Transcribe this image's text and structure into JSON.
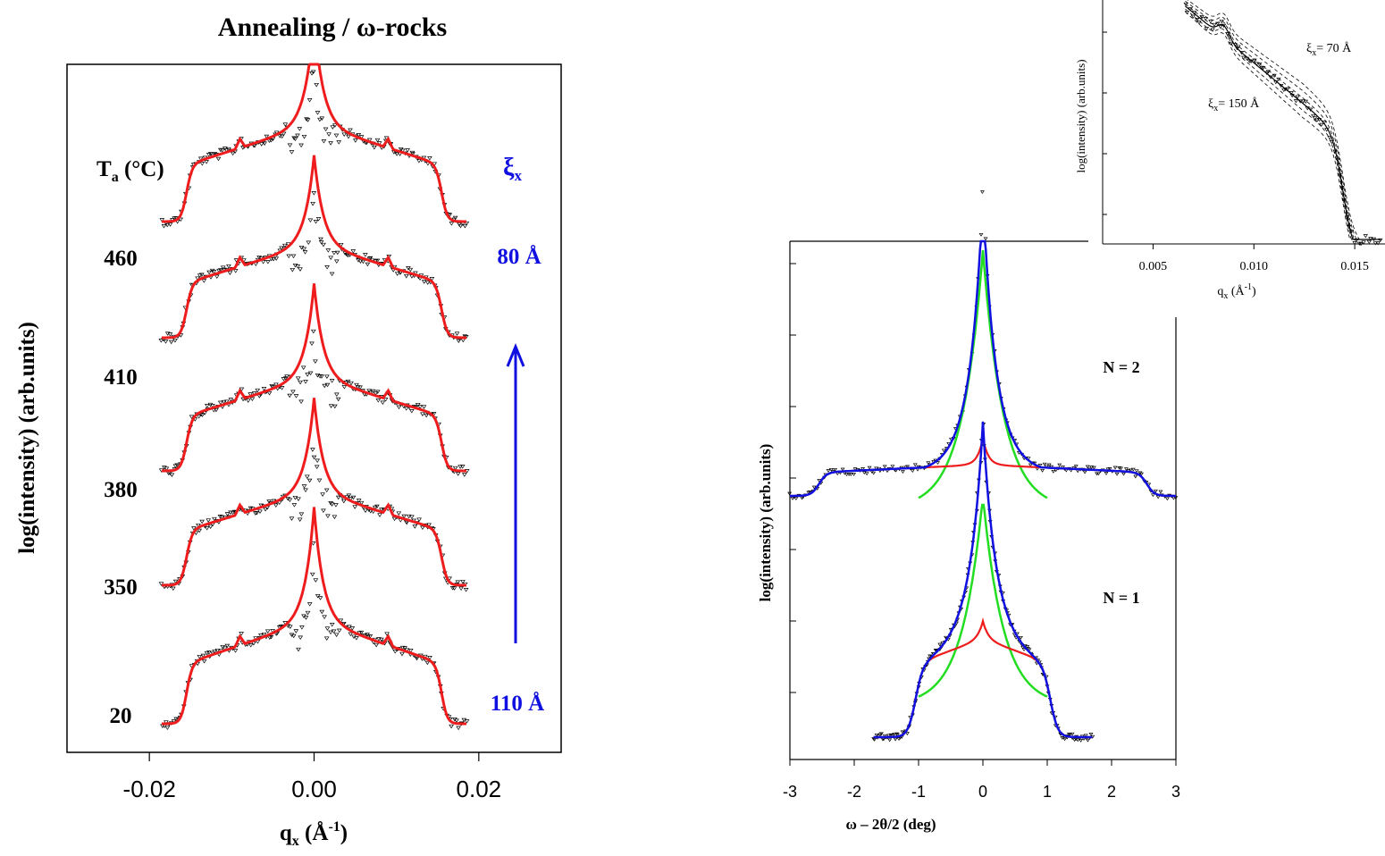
{
  "colors": {
    "fit": "#ee1c1c",
    "total": "#1010e0",
    "specular": "#22dd22",
    "data": "#000000",
    "annotation": "#1010e0"
  },
  "chart_data": [
    {
      "id": "left",
      "type": "line",
      "title": "Annealing / ω-rocks",
      "ylabel": "log(intensity)  (arb.units)",
      "xlabel_main": "q",
      "xlabel_sub": "x",
      "xlabel_unit_open": "  (Å",
      "xlabel_unit_sup": "-1",
      "xlabel_unit_close": ")",
      "xticks": [
        "-0.02",
        "0.00",
        "0.02"
      ],
      "xlim": [
        -0.03,
        0.03
      ],
      "legend_header_main": "T",
      "legend_header_sub": "a",
      "legend_header_unit": " (°C)",
      "xi_main": "ξ",
      "xi_sub": "x",
      "xi_top_value": "80 Å",
      "xi_bottom_value": "110 Å",
      "series": [
        {
          "name": "460"
        },
        {
          "name": "410"
        },
        {
          "name": "380"
        },
        {
          "name": "350"
        },
        {
          "name": "20"
        }
      ],
      "shape": {
        "plateau_edge_qx": 0.0155,
        "data_range_qx": [
          -0.0185,
          0.0185
        ],
        "peak_qx": 0.0
      }
    },
    {
      "id": "right",
      "type": "line",
      "ylabel": "log(intensity)  (arb.units)",
      "xlabel": "ω – 2θ/2  (deg)",
      "xticks": [
        "-3",
        "-2",
        "-1",
        "0",
        "1",
        "2",
        "3"
      ],
      "xlim": [
        -3,
        3
      ],
      "series_labels": [
        "N = 2",
        "N = 1"
      ],
      "series": [
        {
          "name": "N = 2",
          "plateau_edge_deg": 2.55,
          "data_range_deg": [
            -3.0,
            3.0
          ]
        },
        {
          "name": "N = 1",
          "plateau_edge_deg": 1.05,
          "data_range_deg": [
            -1.7,
            1.7
          ]
        }
      ]
    },
    {
      "id": "inset",
      "type": "line",
      "ylabel": "log(intensity)  (arb.units)",
      "xlabel_main": "q",
      "xlabel_sub": "x",
      "xlabel_unit_open": " (Å",
      "xlabel_unit_sup": "-1",
      "xlabel_unit_close": ")",
      "xticks": [
        "0.005",
        "0.010",
        "0.015"
      ],
      "xlim": [
        0.0025,
        0.0165
      ],
      "annotations": [
        {
          "main": "ξ",
          "sub": "x",
          "rest": "= 70 Å"
        },
        {
          "main": "ξ",
          "sub": "x",
          "rest": "= 150 Å"
        }
      ]
    }
  ]
}
